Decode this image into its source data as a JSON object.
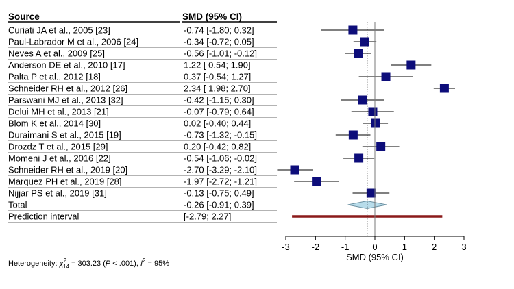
{
  "chart_data": {
    "type": "forest",
    "headers": {
      "source": "Source",
      "effect": "SMD (95% CI)"
    },
    "studies": [
      {
        "source": "Curiati JA et al., 2005 [23]",
        "ci_text": "-0.74 [-1.80;  0.32]",
        "est": -0.74,
        "lo": -1.8,
        "hi": 0.32
      },
      {
        "source": "Paul-Labrador M et al., 2006 [24]",
        "ci_text": "-0.34 [-0.72;  0.05]",
        "est": -0.34,
        "lo": -0.72,
        "hi": 0.05
      },
      {
        "source": "Neves A et al., 2009 [25]",
        "ci_text": "-0.56 [-1.01; -0.12]",
        "est": -0.56,
        "lo": -1.01,
        "hi": -0.12
      },
      {
        "source": "Anderson DE et al., 2010 [17]",
        "ci_text": "1.22 [ 0.54;  1.90]",
        "est": 1.22,
        "lo": 0.54,
        "hi": 1.9
      },
      {
        "source": "Palta P et al., 2012 [18]",
        "ci_text": "0.37 [-0.54;  1.27]",
        "est": 0.37,
        "lo": -0.54,
        "hi": 1.27
      },
      {
        "source": "Schneider RH et al., 2012 [26]",
        "ci_text": "2.34 [ 1.98;  2.70]",
        "est": 2.34,
        "lo": 1.98,
        "hi": 2.7
      },
      {
        "source": "Parswani MJ et al., 2013 [32]",
        "ci_text": "-0.42 [-1.15;  0.30]",
        "est": -0.42,
        "lo": -1.15,
        "hi": 0.3
      },
      {
        "source": "Delui MH et al., 2013 [21]",
        "ci_text": "-0.07 [-0.79;  0.64]",
        "est": -0.07,
        "lo": -0.79,
        "hi": 0.64
      },
      {
        "source": "Blom K et al., 2014 [30]",
        "ci_text": "0.02 [-0.40;  0.44]",
        "est": 0.02,
        "lo": -0.4,
        "hi": 0.44
      },
      {
        "source": "Duraimani S et al., 2015 [19]",
        "ci_text": "-0.73 [-1.32; -0.15]",
        "est": -0.73,
        "lo": -1.32,
        "hi": -0.15
      },
      {
        "source": "Drozdz T et al., 2015 [29]",
        "ci_text": "0.20 [-0.42;  0.82]",
        "est": 0.2,
        "lo": -0.42,
        "hi": 0.82
      },
      {
        "source": "Momeni J et al., 2016 [22]",
        "ci_text": "-0.54 [-1.06; -0.02]",
        "est": -0.54,
        "lo": -1.06,
        "hi": -0.02
      },
      {
        "source": "Schneider RH et al., 2019 [20]",
        "ci_text": "-2.70 [-3.29; -2.10]",
        "est": -2.7,
        "lo": -3.29,
        "hi": -2.1
      },
      {
        "source": "Marquez PH et al., 2019 [28]",
        "ci_text": "-1.97 [-2.72; -1.21]",
        "est": -1.97,
        "lo": -2.72,
        "hi": -1.21
      },
      {
        "source": "Nijjar PS et al., 2019 [31]",
        "ci_text": "-0.13 [-0.75;  0.49]",
        "est": -0.13,
        "lo": -0.75,
        "hi": 0.49
      }
    ],
    "total": {
      "source": "Total",
      "ci_text": "-0.26 [-0.91;  0.39]",
      "est": -0.26,
      "lo": -0.91,
      "hi": 0.39
    },
    "prediction": {
      "source": "Prediction interval",
      "ci_text": "[-2.79;  2.27]",
      "lo": -2.79,
      "hi": 2.27
    },
    "xlim": [
      -3,
      3
    ],
    "ticks": [
      -3,
      -2,
      -1,
      0,
      1,
      2,
      3
    ],
    "xlabel": "SMD (95% CI)",
    "heterogeneity": {
      "prefix": "Heterogeneity: ",
      "chi_symbol": "χ",
      "chi_sup": "2",
      "chi_sub": "14",
      "chi_value": " = 303.23 (",
      "p_symbol": "P",
      "p_value": " < .001), ",
      "i_symbol": "I",
      "i_sup": "2",
      "i_value": " = 95%"
    },
    "colors": {
      "marker": "#0d0d7a",
      "diamond_fill": "#b8dcea",
      "diamond_stroke": "#6a8fa0",
      "prediction": "#8b1a1a",
      "header_line": "#000000"
    }
  }
}
